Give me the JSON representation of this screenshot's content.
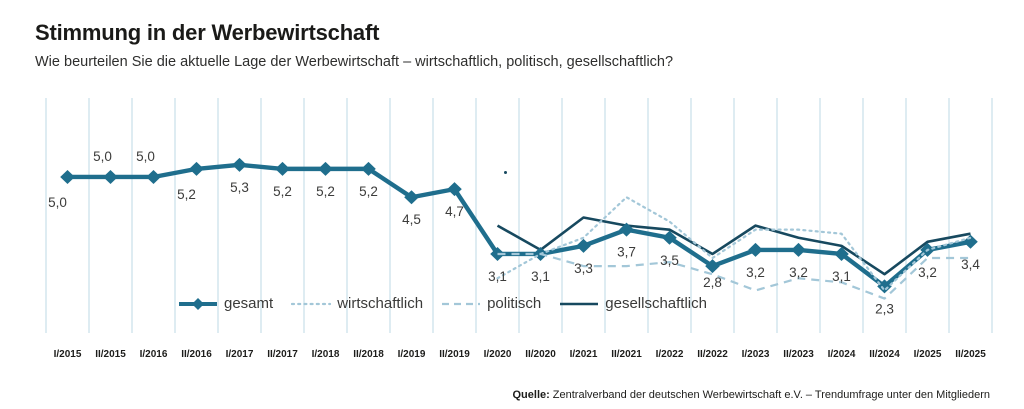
{
  "header": {
    "title": "Stimmung in der Werbewirtschaft",
    "subtitle": "Wie beurteilen Sie die aktuelle Lage der Werbewirtschaft – wirtschaftlich, politisch, gesellschaftlich?"
  },
  "footer": {
    "source_label": "Quelle:",
    "source_text": "Zentralverband der deutschen Werbewirtschaft e.V. – Trendumfrage unter den Mitgliedern"
  },
  "colors": {
    "gesamt": "#1F6E8D",
    "gesellschaftlich": "#17495F",
    "wirtschaftlich": "#A3C7D8",
    "politisch": "#A3C7D8",
    "gridline": "#C9DFE9",
    "axis_text": "#1D1D1B",
    "value_text": "#3C3C3B"
  },
  "chart_data": {
    "type": "line",
    "title": "Stimmung in der Werbewirtschaft",
    "grid": "vertical-only",
    "legend_position": "inside-bottom-left",
    "ylim": [
      1.1,
      6.9
    ],
    "categories": [
      "I/2015",
      "II/2015",
      "I/2016",
      "II/2016",
      "I/2017",
      "II/2017",
      "I/2018",
      "II/2018",
      "I/2019",
      "II/2019",
      "I/2020",
      "II/2020",
      "I/2021",
      "II/2021",
      "I/2022",
      "II/2022",
      "I/2023",
      "II/2023",
      "I/2024",
      "II/2024",
      "I/2025",
      "II/2025"
    ],
    "series": [
      {
        "name": "gesamt",
        "style": "thick-diamond",
        "color": "#1F6E8D",
        "values": [
          5.0,
          5.0,
          5.0,
          5.2,
          5.3,
          5.2,
          5.2,
          5.2,
          4.5,
          4.7,
          3.1,
          3.1,
          3.3,
          3.7,
          3.5,
          2.8,
          3.2,
          3.2,
          3.1,
          2.3,
          3.2,
          3.4
        ],
        "labels": [
          "5,0",
          "5,0",
          "5,0",
          "5,2",
          "5,3",
          "5,2",
          "5,2",
          "5,2",
          "4,5",
          "4,7",
          "3,1",
          "3,1",
          "3,3",
          "3,7",
          "3,5",
          "2,8",
          "3,2",
          "3,2",
          "3,1",
          "2,3",
          "3,2",
          "3,4"
        ]
      },
      {
        "name": "wirtschaftlich",
        "style": "dotted",
        "color": "#A3C7D8",
        "values": [
          null,
          null,
          null,
          null,
          null,
          null,
          null,
          null,
          null,
          null,
          2.5,
          3.1,
          3.5,
          4.5,
          3.9,
          3.0,
          3.7,
          3.7,
          3.6,
          2.2,
          3.2,
          3.5
        ]
      },
      {
        "name": "politisch",
        "style": "dashed",
        "color": "#A3C7D8",
        "values": [
          null,
          null,
          null,
          null,
          null,
          null,
          null,
          null,
          null,
          null,
          3.1,
          3.1,
          2.8,
          2.8,
          2.9,
          2.6,
          2.2,
          2.5,
          2.4,
          2.0,
          3.0,
          3.0
        ]
      },
      {
        "name": "gesellschaftlich",
        "style": "thin-solid",
        "color": "#17495F",
        "values": [
          null,
          null,
          null,
          null,
          null,
          null,
          null,
          null,
          null,
          null,
          3.8,
          3.2,
          4.0,
          3.8,
          3.7,
          3.1,
          3.8,
          3.5,
          3.3,
          2.6,
          3.4,
          3.6
        ]
      }
    ]
  }
}
